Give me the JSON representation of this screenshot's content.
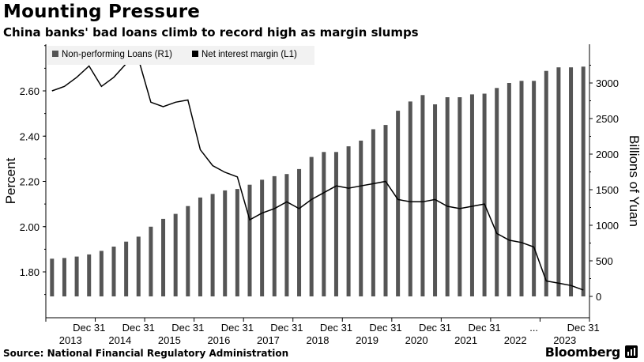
{
  "header": {
    "title": "Mounting Pressure",
    "subtitle": "China banks' bad loans climb to record high as margin slumps"
  },
  "footer": {
    "source": "Source: National Financial Regulatory Administration",
    "brand": "Bloomberg",
    "brand_icon": "bloomberg-logo-icon"
  },
  "colors": {
    "bar": "#555555",
    "line": "#000000",
    "legend_bg": "#f2f2f2"
  },
  "chart_data": {
    "type": "bar",
    "categories": [
      "2013-03",
      "2013-06",
      "2013-09",
      "2013-12",
      "2014-03",
      "2014-06",
      "2014-09",
      "2014-12",
      "2015-03",
      "2015-06",
      "2015-09",
      "2015-12",
      "2016-03",
      "2016-06",
      "2016-09",
      "2016-12",
      "2017-03",
      "2017-06",
      "2017-09",
      "2017-12",
      "2018-03",
      "2018-06",
      "2018-09",
      "2018-12",
      "2019-03",
      "2019-06",
      "2019-09",
      "2019-12",
      "2020-03",
      "2020-06",
      "2020-09",
      "2020-12",
      "2021-03",
      "2021-06",
      "2021-09",
      "2021-12",
      "2022-03",
      "2022-06",
      "2022-09",
      "2022-12",
      "2023-03",
      "2023-06",
      "2023-09",
      "2023-12"
    ],
    "series": [
      {
        "name": "Non-performing Loans (R1)",
        "type": "bar",
        "axis": "right",
        "values": [
          530,
          540,
          560,
          590,
          640,
          700,
          770,
          840,
          980,
          1090,
          1160,
          1270,
          1390,
          1440,
          1490,
          1510,
          1570,
          1640,
          1690,
          1720,
          1790,
          1960,
          2030,
          2030,
          2110,
          2190,
          2350,
          2410,
          2610,
          2740,
          2830,
          2700,
          2800,
          2800,
          2840,
          2850,
          2930,
          3000,
          3030,
          3030,
          3170,
          3220,
          3220,
          3230
        ]
      },
      {
        "name": "Net interest margin (L1)",
        "type": "line",
        "axis": "left",
        "values": [
          2.6,
          2.62,
          2.66,
          2.71,
          2.62,
          2.66,
          2.72,
          2.74,
          2.55,
          2.53,
          2.55,
          2.56,
          2.34,
          2.27,
          2.24,
          2.22,
          2.03,
          2.06,
          2.08,
          2.11,
          2.08,
          2.12,
          2.15,
          2.18,
          2.17,
          2.18,
          2.19,
          2.2,
          2.12,
          2.11,
          2.11,
          2.12,
          2.09,
          2.08,
          2.09,
          2.1,
          1.97,
          1.94,
          1.93,
          1.91,
          1.76,
          1.75,
          1.74,
          1.72
        ]
      }
    ],
    "x_tick_top": [
      "Dec 31",
      "Dec 31",
      "Dec 31",
      "Dec 31",
      "Dec 31",
      "Dec 31",
      "Dec 31",
      "Dec 31",
      "Dec 31",
      "...",
      "Dec 31"
    ],
    "x_tick_year": [
      "2013",
      "2014",
      "2015",
      "2016",
      "2017",
      "2018",
      "2019",
      "2020",
      "2021",
      "2022",
      "2023"
    ],
    "ylabel_left": "Percent",
    "ylabel_right": "Billions of Yuan",
    "yticks_left": [
      "2.60",
      "2.40",
      "2.20",
      "2.00",
      "1.80"
    ],
    "yticks_right": [
      "3000",
      "2500",
      "2000",
      "1500",
      "1000",
      "500",
      "0"
    ],
    "ylim_left": [
      1.7,
      2.8
    ],
    "ylim_right": [
      0,
      3500
    ],
    "legend_position": "top-left",
    "grid": false
  }
}
